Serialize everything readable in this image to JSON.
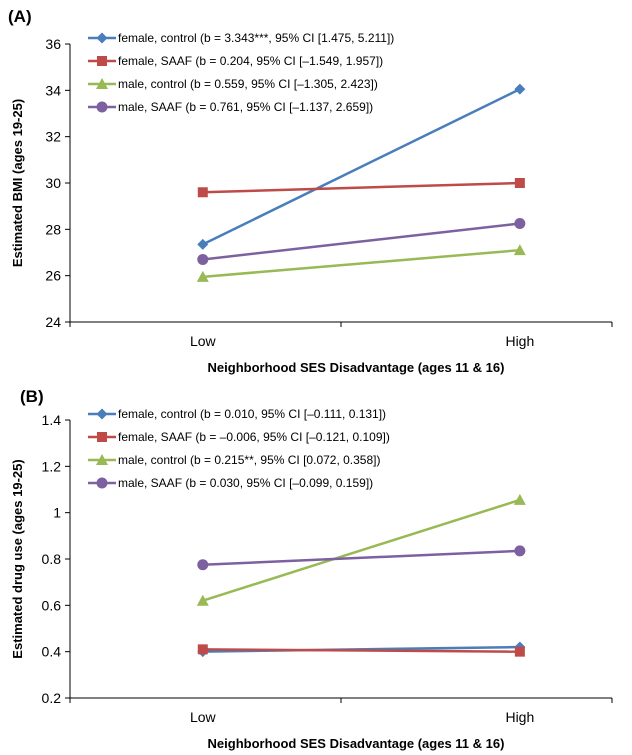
{
  "chart_data": [
    {
      "type": "line",
      "panel_label": "(A)",
      "categories": [
        "Low",
        "High"
      ],
      "xlabel": "Neighborhood SES Disadvantage (ages 11 & 16)",
      "ylabel": "Estimated BMI (ages 19-25)",
      "ylim": [
        24,
        36
      ],
      "yticks": [
        "24",
        "26",
        "28",
        "30",
        "32",
        "34",
        "36"
      ],
      "grid": false,
      "legend_position": "top-left",
      "series": [
        {
          "name": "female, control (b = 3.343***, 95% CI [1.475, 5.211])",
          "values": [
            27.35,
            34.05
          ],
          "color": "#4a7ebb",
          "marker": "diamond"
        },
        {
          "name": "female, SAAF (b = 0.204, 95% CI [–1.549, 1.957])",
          "values": [
            29.6,
            30.0
          ],
          "color": "#be4b48",
          "marker": "square"
        },
        {
          "name": "male, control (b = 0.559, 95% CI [–1.305, 2.423])",
          "values": [
            25.95,
            27.1
          ],
          "color": "#98b954",
          "marker": "triangle"
        },
        {
          "name": "male, SAAF (b = 0.761, 95% CI [–1.137, 2.659])",
          "values": [
            26.7,
            28.25
          ],
          "color": "#7d60a0",
          "marker": "circle"
        }
      ]
    },
    {
      "type": "line",
      "panel_label": "(B)",
      "categories": [
        "Low",
        "High"
      ],
      "xlabel": "Neighborhood SES Disadvantage (ages 11 & 16)",
      "ylabel": "Estimated drug use (ages 19-25)",
      "ylim": [
        0.2,
        1.4
      ],
      "yticks": [
        "0.2",
        "0.4",
        "0.6",
        "0.8",
        "1",
        "1.2",
        "1.4"
      ],
      "grid": false,
      "legend_position": "top-left",
      "series": [
        {
          "name": "female, control (b = 0.010, 95% CI [–0.111, 0.131])",
          "values": [
            0.4,
            0.42
          ],
          "color": "#4a7ebb",
          "marker": "diamond"
        },
        {
          "name": "female, SAAF (b = –0.006, 95% CI [–0.121, 0.109])",
          "values": [
            0.41,
            0.4
          ],
          "color": "#be4b48",
          "marker": "square"
        },
        {
          "name": "male, control (b = 0.215**, 95% CI [0.072, 0.358])",
          "values": [
            0.62,
            1.055
          ],
          "color": "#98b954",
          "marker": "triangle"
        },
        {
          "name": "male, SAAF (b = 0.030, 95% CI [–0.099, 0.159])",
          "values": [
            0.775,
            0.835
          ],
          "color": "#7d60a0",
          "marker": "circle"
        }
      ]
    }
  ]
}
